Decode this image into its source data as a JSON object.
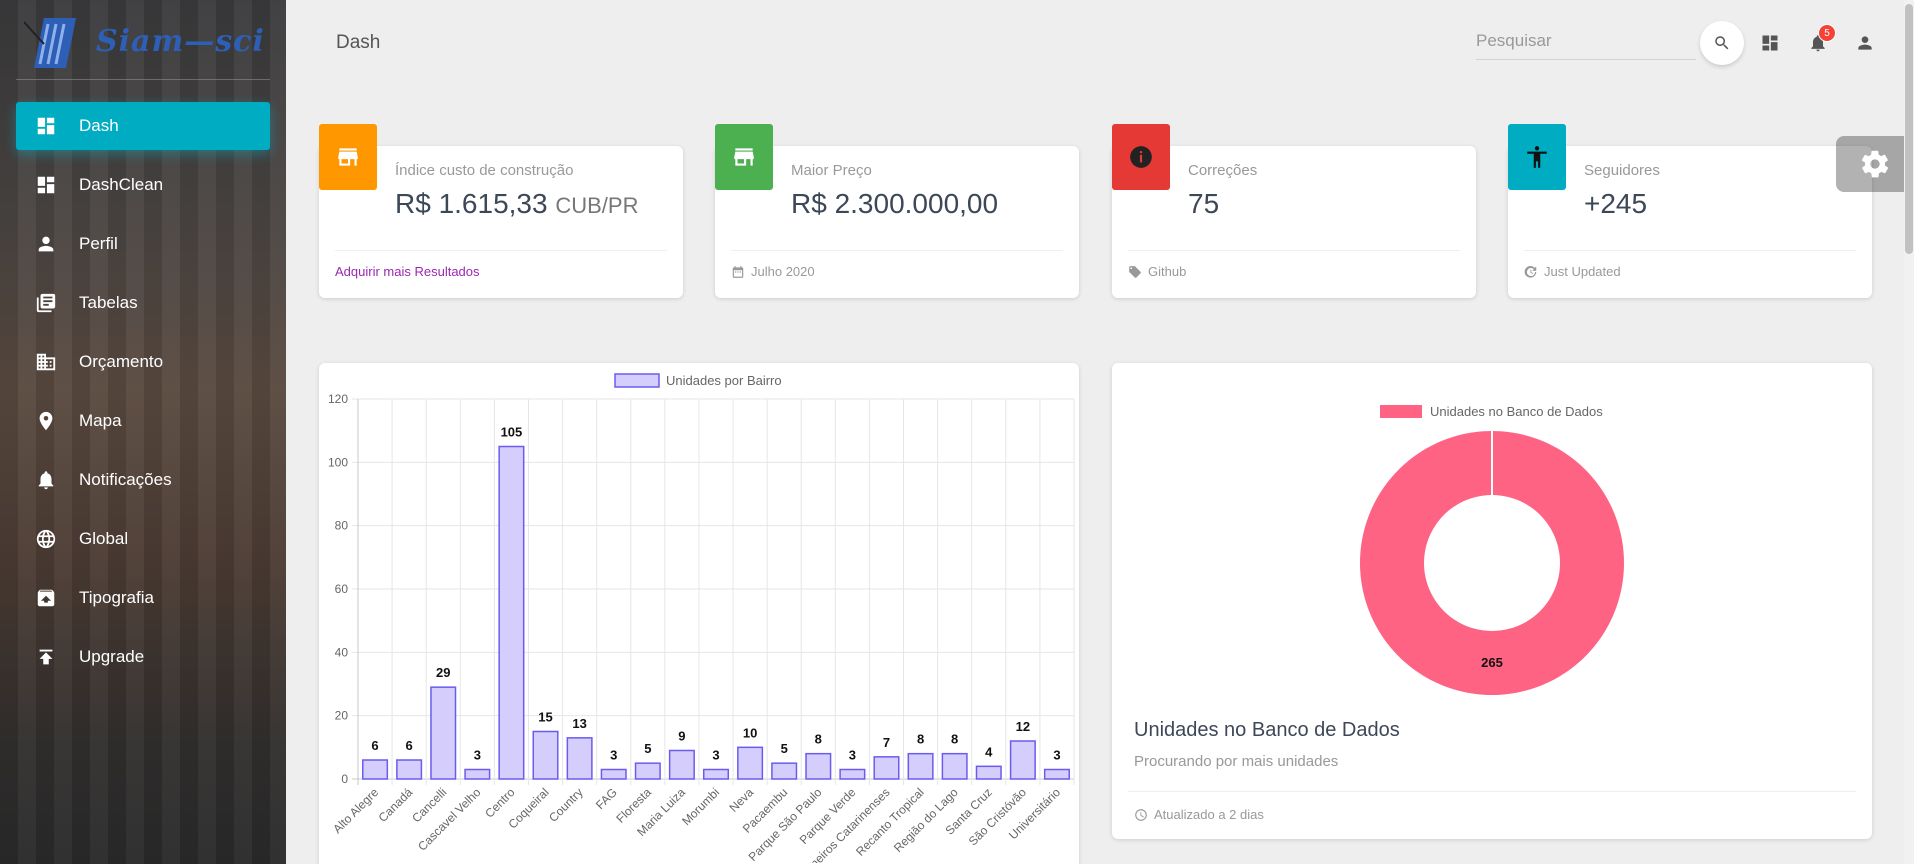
{
  "sidebar": {
    "logo_text": "Siam—sci",
    "items": [
      {
        "label": "Dash",
        "icon": "dashboard-icon",
        "active": true
      },
      {
        "label": "DashClean",
        "icon": "dashboard-icon"
      },
      {
        "label": "Perfil",
        "icon": "person-icon"
      },
      {
        "label": "Tabelas",
        "icon": "library-books-icon"
      },
      {
        "label": "Orçamento",
        "icon": "building-icon"
      },
      {
        "label": "Mapa",
        "icon": "location-pin-icon"
      },
      {
        "label": "Notificações",
        "icon": "bell-icon"
      },
      {
        "label": "Global",
        "icon": "globe-icon"
      },
      {
        "label": "Tipografia",
        "icon": "unarchive-icon"
      },
      {
        "label": "Upgrade",
        "icon": "upload-icon"
      }
    ]
  },
  "header": {
    "title": "Dash",
    "search_placeholder": "Pesquisar",
    "notification_count": "5"
  },
  "stats": [
    {
      "label": "Índice custo de construção",
      "value": "R$ 1.615,33",
      "unit": "CUB/PR",
      "footer": "Adquirir mais Resultados",
      "color": "#ff9800",
      "icon": "store-icon"
    },
    {
      "label": "Maior Preço",
      "value": "R$ 2.300.000,00",
      "unit": "",
      "footer": "Julho 2020",
      "color": "#4caf50",
      "icon": "store-icon"
    },
    {
      "label": "Correções",
      "value": "75",
      "unit": "",
      "footer": "Github",
      "color": "#f44336",
      "icon": "info-icon"
    },
    {
      "label": "Seguidores",
      "value": "+245",
      "unit": "",
      "footer": "Just Updated",
      "color": "#00acc1",
      "icon": "accessibility-icon"
    }
  ],
  "donut_card": {
    "title": "Unidades no Banco de Dados",
    "subtitle": "Procurando por mais unidades",
    "footer": "Atualizado a 2 dias"
  },
  "chart_data": [
    {
      "type": "bar",
      "legend": "Unidades por Bairro",
      "categories": [
        "Alto Alegre",
        "Canadá",
        "Cancelli",
        "Cascavel Velho",
        "Centro",
        "Coqueiral",
        "Country",
        "FAG",
        "Floresta",
        "Maria Luiza",
        "Morumbi",
        "Neva",
        "Pacaembu",
        "Parque São Paulo",
        "Parque Verde",
        "Pioneiros Catarinenses",
        "Recanto Tropical",
        "Região do Lago",
        "Santa Cruz",
        "São Cristóvão",
        "Universitário"
      ],
      "values": [
        6,
        6,
        29,
        3,
        105,
        15,
        13,
        3,
        5,
        9,
        3,
        10,
        5,
        8,
        3,
        7,
        8,
        8,
        4,
        12,
        3
      ],
      "ylim": [
        0,
        120
      ],
      "yticks": [
        0,
        20,
        40,
        60,
        80,
        100,
        120
      ],
      "grid": true,
      "legend_position": "top",
      "colors": {
        "fill": "#d5cdfb",
        "stroke": "#6a5cf0"
      }
    },
    {
      "type": "pie",
      "legend": "Unidades no Banco de Dados",
      "values": [
        265
      ],
      "labels": [
        "Unidades no Banco de Dados"
      ],
      "legend_position": "top",
      "colors": {
        "fill": "#ff6384"
      }
    }
  ]
}
